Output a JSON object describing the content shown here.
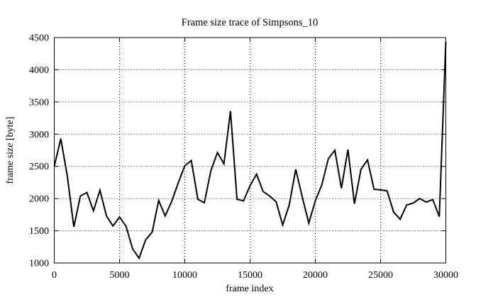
{
  "chart_data": {
    "type": "line",
    "title": "Frame size trace of Simpsons_10",
    "xlabel": "frame index",
    "ylabel": "frame size [byte]",
    "xlim": [
      0,
      30000
    ],
    "ylim": [
      1000,
      4500
    ],
    "x_ticks": [
      0,
      5000,
      10000,
      15000,
      20000,
      25000,
      30000
    ],
    "y_ticks": [
      1000,
      1500,
      2000,
      2500,
      3000,
      3500,
      4000,
      4500
    ],
    "grid": true,
    "legend": false,
    "background_color": "#ffffff",
    "line_color": "#000000",
    "series": [
      {
        "x": [
          0,
          500,
          1000,
          1500,
          2000,
          2500,
          3000,
          3500,
          4000,
          4500,
          5000,
          5500,
          6000,
          6500,
          7000,
          7500,
          8000,
          8500,
          9000,
          9500,
          10000,
          10500,
          11000,
          11500,
          12000,
          12500,
          13000,
          13500,
          14000,
          14500,
          15000,
          15500,
          16000,
          16500,
          17000,
          17500,
          18000,
          18500,
          19000,
          19500,
          20000,
          20500,
          21000,
          21500,
          22000,
          22500,
          23000,
          23500,
          24000,
          24500,
          25000,
          25500,
          26000,
          26500,
          27000,
          27500,
          28000,
          28500,
          29000,
          29500,
          30000
        ],
        "values": [
          2500,
          2930,
          2350,
          1560,
          2040,
          2095,
          1810,
          2130,
          1730,
          1575,
          1715,
          1570,
          1220,
          1075,
          1360,
          1480,
          1970,
          1730,
          1960,
          2245,
          2510,
          2590,
          1990,
          1935,
          2435,
          2715,
          2540,
          3360,
          1990,
          1965,
          2200,
          2380,
          2110,
          2040,
          1950,
          1590,
          1900,
          2455,
          2025,
          1620,
          1965,
          2215,
          2620,
          2750,
          2160,
          2760,
          1920,
          2455,
          2600,
          2145,
          2135,
          2120,
          1790,
          1680,
          1900,
          1930,
          2000,
          1945,
          1985,
          1720,
          4440
        ]
      }
    ]
  }
}
